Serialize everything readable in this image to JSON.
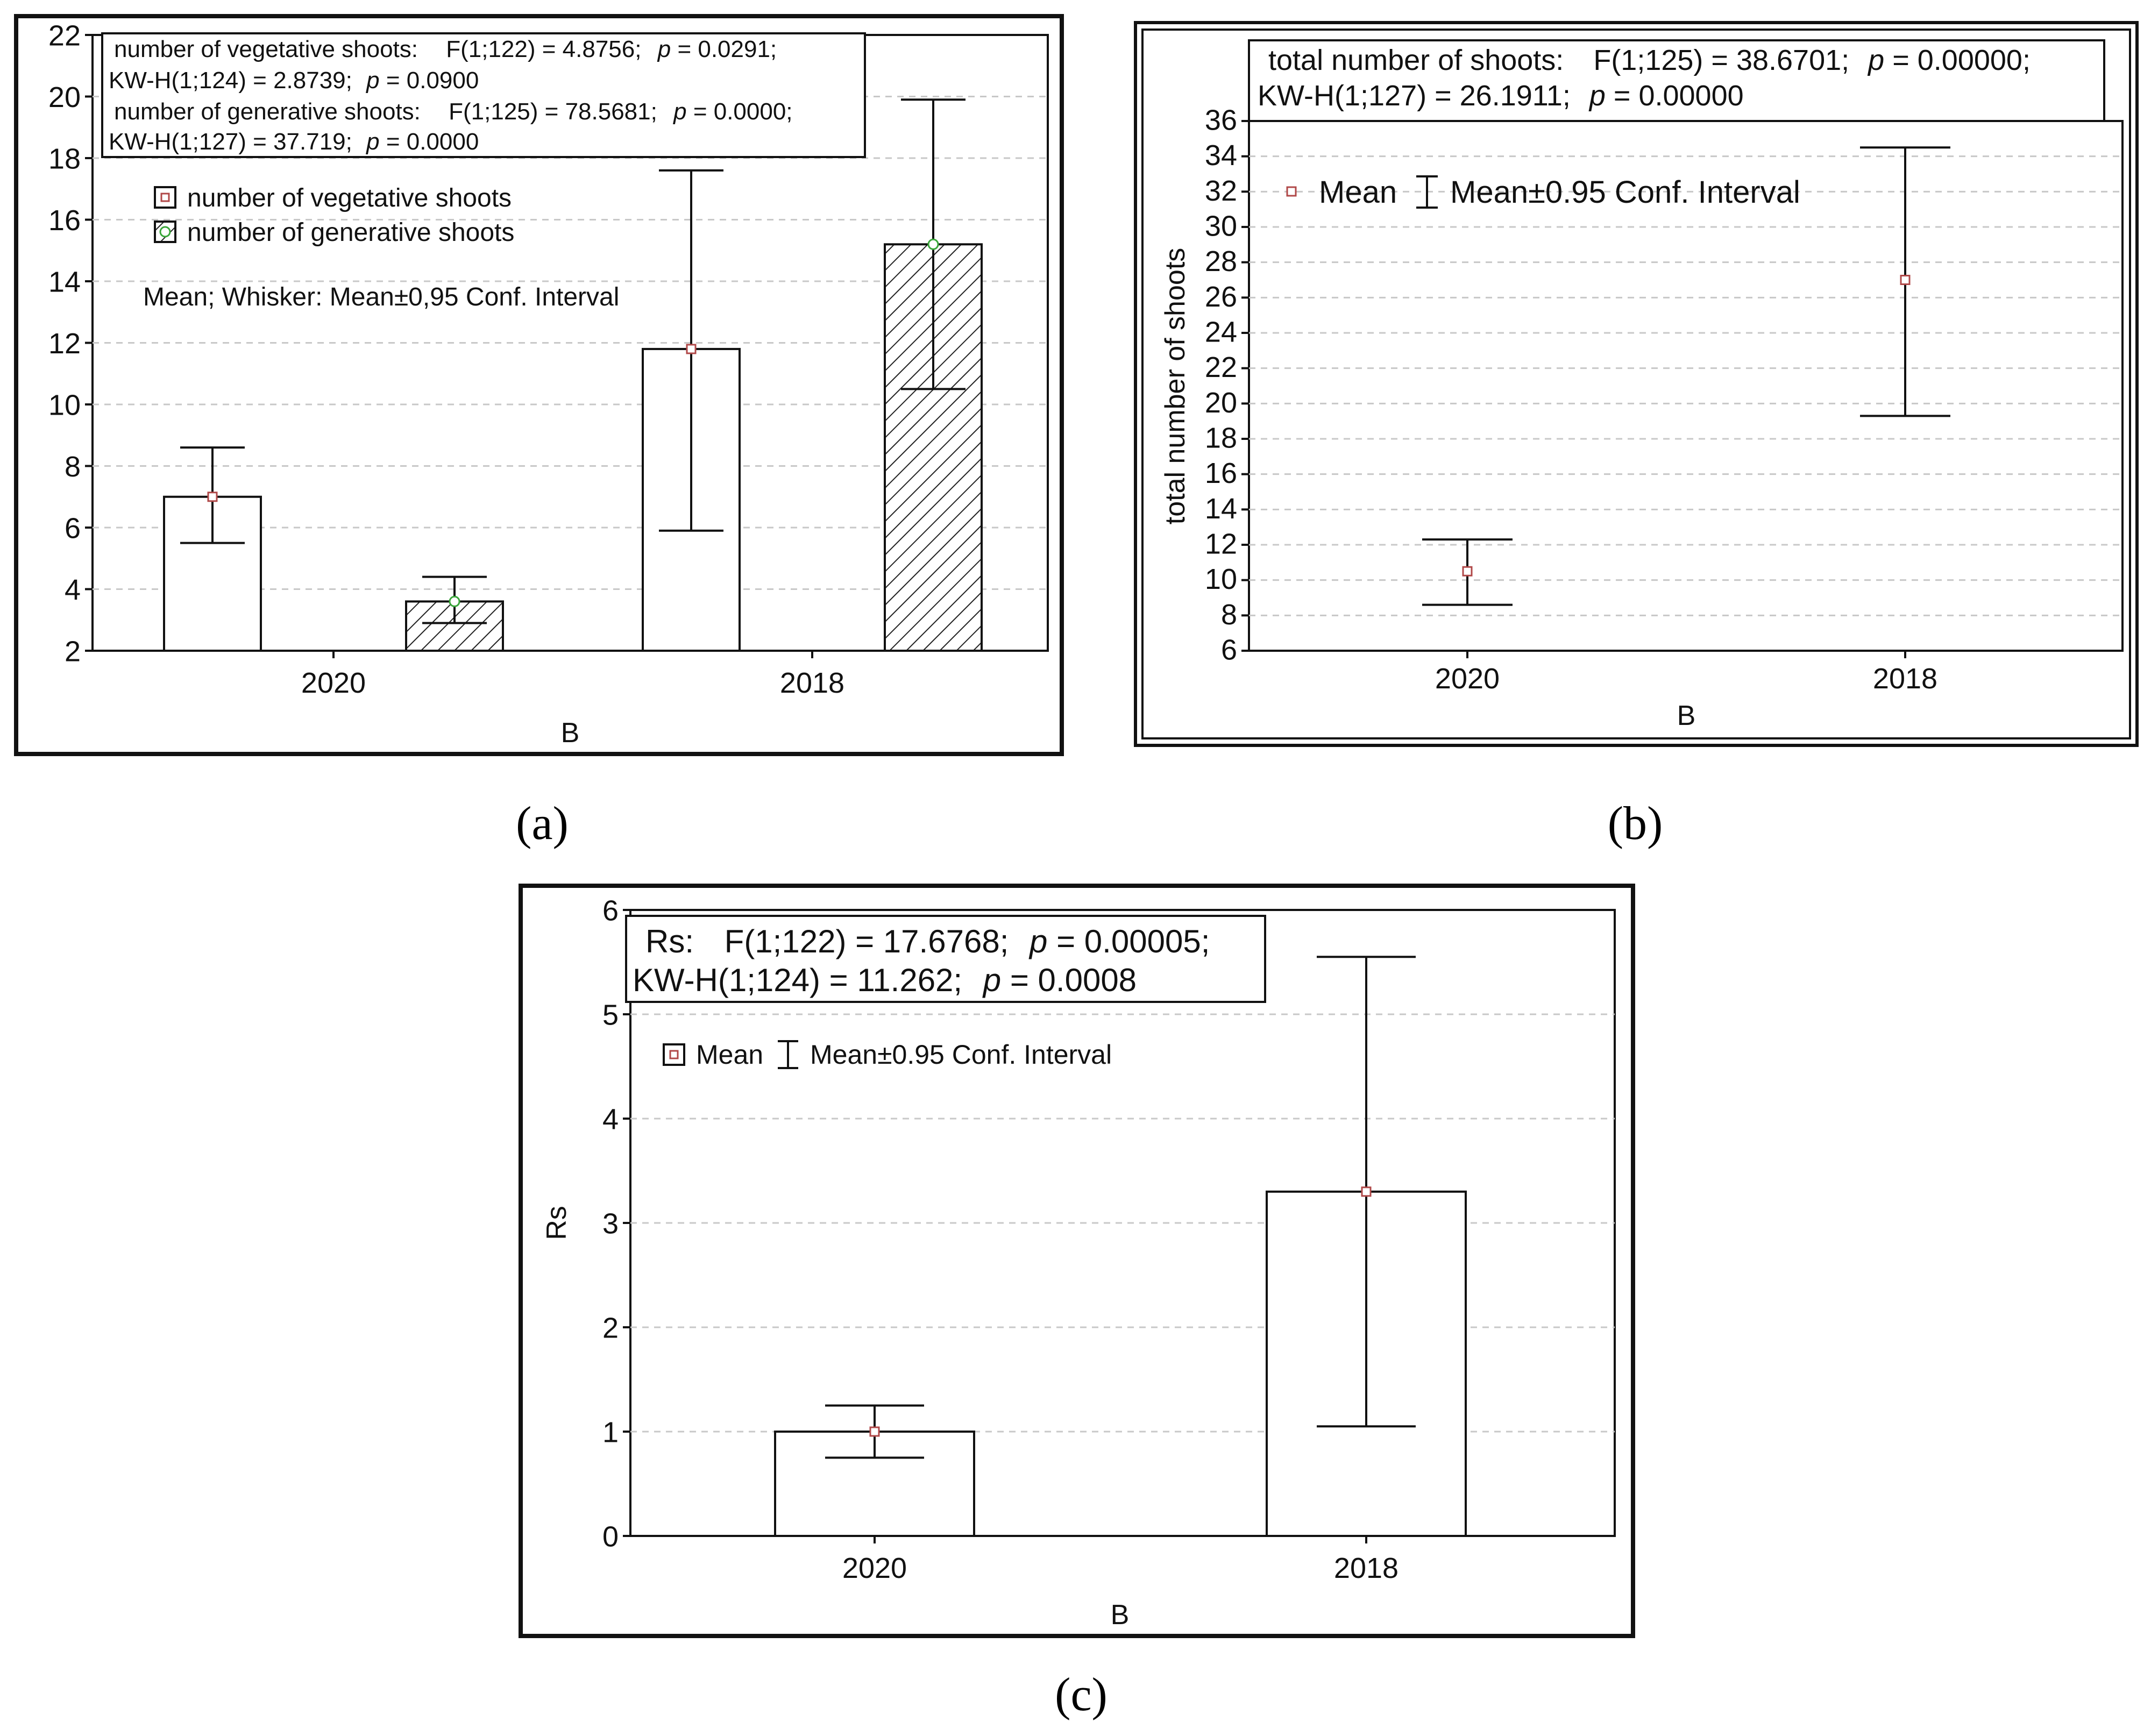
{
  "panel_labels": {
    "a": "(a)",
    "b": "(b)",
    "c": "(c)"
  },
  "colors": {
    "vegetative_marker": "#b04848",
    "generative_marker": "#3aa63a",
    "bar_fill": "#ffffff",
    "hatch": "#222222"
  },
  "chart_data": [
    {
      "id": "a",
      "type": "bar",
      "categories": [
        "2020",
        "2018"
      ],
      "xlabel": "B",
      "ylabel": "",
      "ylim": [
        2,
        22
      ],
      "yticks": [
        2,
        4,
        6,
        8,
        10,
        12,
        14,
        16,
        18,
        20,
        22
      ],
      "series": [
        {
          "name": "number of vegetative shoots",
          "fill": "plain",
          "marker_color": "#b04848",
          "values": [
            7.0,
            11.8
          ],
          "lower": [
            5.5,
            5.9
          ],
          "upper": [
            8.6,
            17.6
          ]
        },
        {
          "name": "number of generative shoots",
          "fill": "hatched",
          "marker_color": "#3aa63a",
          "values": [
            3.6,
            15.2
          ],
          "lower": [
            2.9,
            10.5
          ],
          "upper": [
            4.4,
            19.9
          ]
        }
      ],
      "stats": [
        {
          "label": "number of vegetative shoots:",
          "anova": "F(1;122) = 4.8756;",
          "p1": "p",
          "p1v": "= 0.0291;",
          "kw": "KW-H(1;124) = 2.8739;",
          "p2": "p",
          "p2v": "= 0.0900"
        },
        {
          "label": "number of generative shoots:",
          "anova": "F(1;125) = 78.5681;",
          "p1": "p",
          "p1v": "= 0.0000;",
          "kw": "KW-H(1;127) = 37.719;",
          "p2": "p",
          "p2v": "= 0.0000"
        }
      ],
      "note": "Mean; Whisker: Mean±0,95 Conf. Interval",
      "grid": true
    },
    {
      "id": "b",
      "type": "scatter",
      "categories": [
        "2020",
        "2018"
      ],
      "xlabel": "B",
      "ylabel": "total number of shoots",
      "ylim": [
        6,
        36
      ],
      "yticks": [
        6,
        8,
        10,
        12,
        14,
        16,
        18,
        20,
        22,
        24,
        26,
        28,
        30,
        32,
        34,
        36
      ],
      "values": [
        10.5,
        27.0
      ],
      "lower": [
        8.6,
        19.3
      ],
      "upper": [
        12.3,
        34.5
      ],
      "stats": {
        "label": "total number of shoots:",
        "anova": "F(1;125) = 38.6701;",
        "p1": "p",
        "p1v": "= 0.00000;",
        "kw": "KW-H(1;127) = 26.1911;",
        "p2": "p",
        "p2v": "= 0.00000"
      },
      "legend": {
        "mean": "Mean",
        "ci": "Mean±0.95 Conf. Interval"
      },
      "grid": true
    },
    {
      "id": "c",
      "type": "bar",
      "categories": [
        "2020",
        "2018"
      ],
      "xlabel": "B",
      "ylabel": "Rs",
      "ylim": [
        0,
        6
      ],
      "yticks": [
        0,
        1,
        2,
        3,
        4,
        5,
        6
      ],
      "values": [
        1.0,
        3.3
      ],
      "lower": [
        0.75,
        1.05
      ],
      "upper": [
        1.25,
        5.55
      ],
      "stats": {
        "label": "Rs:",
        "anova": "F(1;122) = 17.6768;",
        "p1": "p",
        "p1v": "= 0.00005;",
        "kw": "KW-H(1;124) = 11.262;",
        "p2": "p",
        "p2v": "= 0.0008"
      },
      "legend": {
        "mean": "Mean",
        "ci": "Mean±0.95 Conf. Interval"
      },
      "grid": true
    }
  ]
}
